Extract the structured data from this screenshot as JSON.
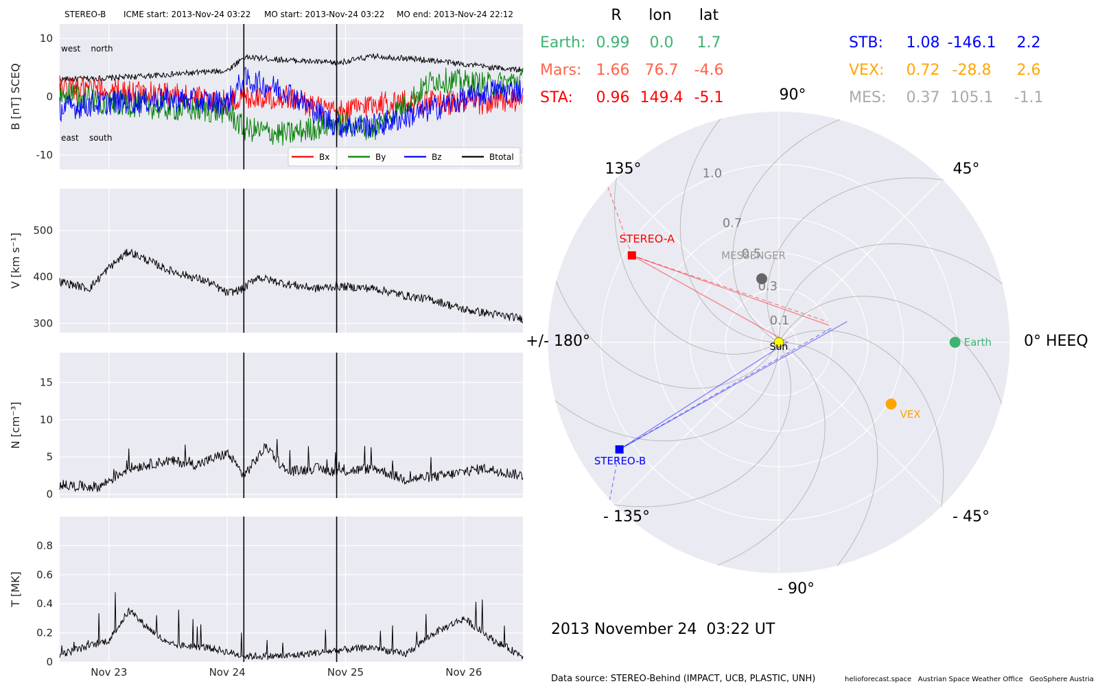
{
  "header": {
    "spacecraft": "STEREO-B",
    "icme_start": "ICME start: 2013-Nov-24 03:22",
    "mo_start": "MO start: 2013-Nov-24 03:22",
    "mo_end": "MO end: 2013-Nov-24 22:12"
  },
  "colors": {
    "bx": "#ff0000",
    "by": "#008000",
    "bz": "#0000ff",
    "btotal": "#000000",
    "earth": "#3cb371",
    "mars": "#ff6347",
    "sta": "#ff0000",
    "stb": "#0000ff",
    "vex": "#ffa500",
    "mes": "#a9a9a9",
    "polar_bg": "#eaeaf2",
    "sun": "#ffff00",
    "messenger_marker": "#666666"
  },
  "table": {
    "headers": [
      "R",
      "lon",
      "lat"
    ],
    "left": [
      {
        "key": "earth",
        "label": "Earth:",
        "R": "0.99",
        "lon": "0.0",
        "lat": "1.7"
      },
      {
        "key": "mars",
        "label": "Mars:",
        "R": "1.66",
        "lon": "76.7",
        "lat": "-4.6"
      },
      {
        "key": "sta",
        "label": "STA:",
        "R": "0.96",
        "lon": "149.4",
        "lat": "-5.1"
      }
    ],
    "right": [
      {
        "key": "stb",
        "label": "STB:",
        "R": "1.08",
        "lon": "-146.1",
        "lat": "2.2"
      },
      {
        "key": "vex",
        "label": "VEX:",
        "R": "0.72",
        "lon": "-28.8",
        "lat": "2.6"
      },
      {
        "key": "mes",
        "label": "MES:",
        "R": "0.37",
        "lon": "105.1",
        "lat": "-1.1"
      }
    ]
  },
  "polar": {
    "angle_labels": {
      "a90": "90°",
      "a45": "45°",
      "a0": "0° HEEQ",
      "am45": "- 45°",
      "am90": "- 90°",
      "am135": "- 135°",
      "a180": "+/- 180°",
      "a135": "135°"
    },
    "radial_labels": [
      "0.1",
      "0.3",
      "0.5",
      "0.7",
      "1.0"
    ],
    "sun_label": "Sun",
    "bodies": [
      {
        "key": "earth",
        "label": "Earth"
      },
      {
        "key": "vex",
        "label": "VEX"
      },
      {
        "key": "messenger",
        "label": "MESSENGER"
      },
      {
        "key": "sta",
        "label": "STEREO-A"
      },
      {
        "key": "stb",
        "label": "STEREO-B"
      }
    ]
  },
  "date_label": "2013 November 24  03:22 UT",
  "footer": {
    "source": "Data source: STEREO-Behind (IMPACT, UCB, PLASTIC, UNH)",
    "credits": "helioforecast.space   Austrian Space Weather Office   GeoSphere Austria"
  },
  "chart_data": [
    {
      "type": "line",
      "ylabel": "B [nT] SCEQ",
      "ylim": [
        -12.5,
        12.5
      ],
      "yticks": [
        -10,
        0,
        10
      ],
      "corner_labels": {
        "top_left": "west    north",
        "bottom_left": "east    south"
      },
      "x_range_days": [
        "2013-11-22 14:00",
        "2013-11-26 12:00"
      ],
      "xticks": [
        "Nov 23",
        "Nov 24",
        "Nov 25",
        "Nov 26"
      ],
      "event_lines": [
        "2013-11-24 03:22",
        "2013-11-24 22:12"
      ],
      "legend": [
        "Bx",
        "By",
        "Bz",
        "Btotal"
      ],
      "legend_placement": "bottom-right",
      "series": [
        {
          "name": "Btotal",
          "color": "#000000",
          "x": [
            "2013-11-22 14:00",
            "2013-11-23 00:00",
            "2013-11-23 12:00",
            "2013-11-24 00:00",
            "2013-11-24 03:22",
            "2013-11-24 12:00",
            "2013-11-24 22:12",
            "2013-11-25 06:00",
            "2013-11-25 18:00",
            "2013-11-26 06:00",
            "2013-11-26 12:00"
          ],
          "values": [
            3,
            3.2,
            3.8,
            4.5,
            6.8,
            6.3,
            5.8,
            7.0,
            6.2,
            5.0,
            4.6
          ]
        },
        {
          "name": "Bx",
          "color": "#ff0000",
          "x": [
            "2013-11-22 14:00",
            "2013-11-23 00:00",
            "2013-11-23 12:00",
            "2013-11-24 00:00",
            "2013-11-24 03:22",
            "2013-11-24 12:00",
            "2013-11-24 22:12",
            "2013-11-25 06:00",
            "2013-11-25 18:00",
            "2013-11-26 06:00",
            "2013-11-26 12:00"
          ],
          "values": [
            1.5,
            1,
            0.5,
            -1,
            0,
            0,
            -3,
            -1,
            -1,
            -1,
            -0.5
          ]
        },
        {
          "name": "By",
          "color": "#008000",
          "x": [
            "2013-11-22 14:00",
            "2013-11-23 00:00",
            "2013-11-23 12:00",
            "2013-11-24 00:00",
            "2013-11-24 03:22",
            "2013-11-24 12:00",
            "2013-11-24 22:12",
            "2013-11-25 06:00",
            "2013-11-25 18:00",
            "2013-11-26 06:00",
            "2013-11-26 12:00"
          ],
          "values": [
            0.5,
            -1,
            -2,
            -2.5,
            -5.5,
            -6.5,
            -4.5,
            -5.5,
            3,
            2,
            3
          ]
        },
        {
          "name": "Bz",
          "color": "#0000ff",
          "x": [
            "2013-11-22 14:00",
            "2013-11-23 00:00",
            "2013-11-23 12:00",
            "2013-11-24 00:00",
            "2013-11-24 03:22",
            "2013-11-24 12:00",
            "2013-11-24 22:12",
            "2013-11-25 06:00",
            "2013-11-25 18:00",
            "2013-11-26 06:00",
            "2013-11-26 12:00"
          ],
          "values": [
            -2,
            -1,
            -0.5,
            -1,
            3,
            1,
            -5,
            -5,
            -2,
            1,
            1
          ]
        }
      ]
    },
    {
      "type": "line",
      "ylabel": "V [km s⁻¹]",
      "ylim": [
        280,
        590
      ],
      "yticks": [
        300,
        400,
        500
      ],
      "series": [
        {
          "name": "V",
          "x": [
            "2013-11-22 14:00",
            "2013-11-22 20:00",
            "2013-11-23 00:00",
            "2013-11-23 04:00",
            "2013-11-23 12:00",
            "2013-11-23 20:00",
            "2013-11-24 00:00",
            "2013-11-24 03:22",
            "2013-11-24 06:00",
            "2013-11-24 12:00",
            "2013-11-24 18:00",
            "2013-11-24 22:12",
            "2013-11-25 06:00",
            "2013-11-25 12:00",
            "2013-11-25 18:00",
            "2013-11-26 00:00",
            "2013-11-26 06:00",
            "2013-11-26 12:00"
          ],
          "values": [
            390,
            375,
            420,
            455,
            415,
            390,
            365,
            375,
            400,
            385,
            375,
            380,
            375,
            360,
            350,
            330,
            320,
            310
          ]
        }
      ]
    },
    {
      "type": "line",
      "ylabel": "N [cm⁻³]",
      "ylim": [
        -0.5,
        19
      ],
      "yticks": [
        0,
        5,
        10,
        15
      ],
      "series": [
        {
          "name": "N",
          "x": [
            "2013-11-22 14:00",
            "2013-11-22 22:00",
            "2013-11-23 04:00",
            "2013-11-23 12:00",
            "2013-11-23 18:00",
            "2013-11-24 00:00",
            "2013-11-24 03:22",
            "2013-11-24 08:00",
            "2013-11-24 12:00",
            "2013-11-24 18:00",
            "2013-11-24 22:12",
            "2013-11-25 06:00",
            "2013-11-25 12:00",
            "2013-11-25 20:00",
            "2013-11-26 04:00",
            "2013-11-26 12:00"
          ],
          "values": [
            1.2,
            1.0,
            3.5,
            4.5,
            4.0,
            5.5,
            2.5,
            6.5,
            3.0,
            3.5,
            3.0,
            3.5,
            2.0,
            2.5,
            3.5,
            2.5
          ]
        }
      ]
    },
    {
      "type": "line",
      "ylabel": "T [MK]",
      "ylim": [
        0,
        1.0
      ],
      "yticks": [
        0.0,
        0.2,
        0.4,
        0.6,
        0.8
      ],
      "series": [
        {
          "name": "T",
          "x": [
            "2013-11-22 14:00",
            "2013-11-23 00:00",
            "2013-11-23 04:00",
            "2013-11-23 12:00",
            "2013-11-23 20:00",
            "2013-11-24 00:00",
            "2013-11-24 03:22",
            "2013-11-24 12:00",
            "2013-11-24 22:12",
            "2013-11-25 06:00",
            "2013-11-25 12:00",
            "2013-11-25 18:00",
            "2013-11-26 00:00",
            "2013-11-26 06:00",
            "2013-11-26 12:00"
          ],
          "values": [
            0.05,
            0.15,
            0.35,
            0.12,
            0.1,
            0.07,
            0.04,
            0.04,
            0.08,
            0.1,
            0.05,
            0.2,
            0.3,
            0.15,
            0.04
          ]
        }
      ]
    }
  ]
}
